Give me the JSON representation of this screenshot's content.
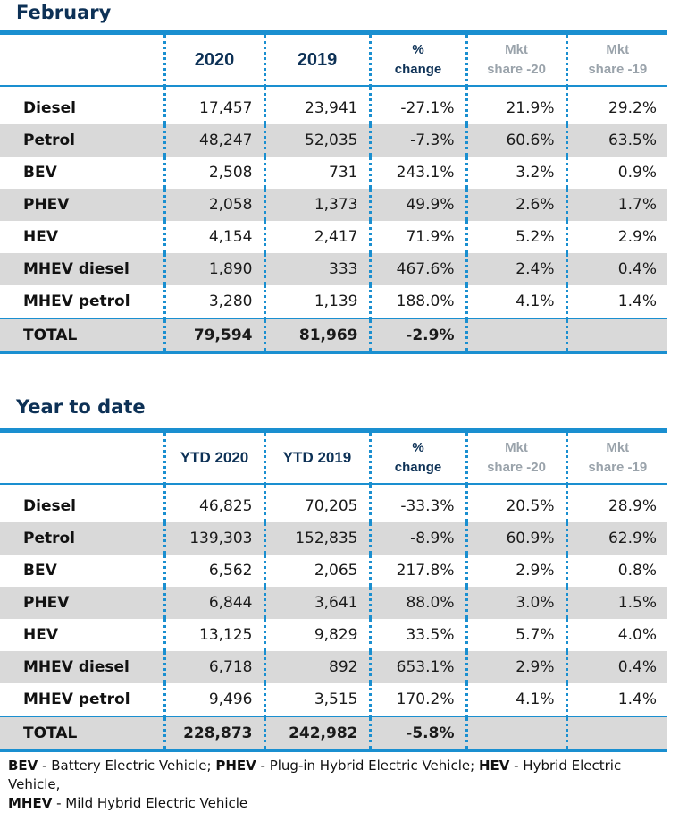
{
  "tables": [
    {
      "title": "February",
      "headers": [
        "",
        "2020",
        "2019",
        "%\nchange",
        "Mkt\nshare -20",
        "Mkt\nshare -19"
      ],
      "rows": [
        {
          "label": "Diesel",
          "values": [
            "17,457",
            "23,941",
            "-27.1%",
            "21.9%",
            "29.2%"
          ]
        },
        {
          "label": "Petrol",
          "values": [
            "48,247",
            "52,035",
            "-7.3%",
            "60.6%",
            "63.5%"
          ]
        },
        {
          "label": "BEV",
          "values": [
            "2,508",
            "731",
            "243.1%",
            "3.2%",
            "0.9%"
          ]
        },
        {
          "label": "PHEV",
          "values": [
            "2,058",
            "1,373",
            "49.9%",
            "2.6%",
            "1.7%"
          ]
        },
        {
          "label": "HEV",
          "values": [
            "4,154",
            "2,417",
            "71.9%",
            "5.2%",
            "2.9%"
          ]
        },
        {
          "label": "MHEV diesel",
          "values": [
            "1,890",
            "333",
            "467.6%",
            "2.4%",
            "0.4%"
          ]
        },
        {
          "label": "MHEV petrol",
          "values": [
            "3,280",
            "1,139",
            "188.0%",
            "4.1%",
            "1.4%"
          ]
        }
      ],
      "total": {
        "label": "TOTAL",
        "values": [
          "79,594",
          "81,969",
          "-2.9%",
          "",
          ""
        ]
      }
    },
    {
      "title": "Year to date",
      "headers": [
        "",
        "YTD 2020",
        "YTD 2019",
        "%\nchange",
        "Mkt\nshare -20",
        "Mkt\nshare -19"
      ],
      "rows": [
        {
          "label": "Diesel",
          "values": [
            "46,825",
            "70,205",
            "-33.3%",
            "20.5%",
            "28.9%"
          ]
        },
        {
          "label": "Petrol",
          "values": [
            "139,303",
            "152,835",
            "-8.9%",
            "60.9%",
            "62.9%"
          ]
        },
        {
          "label": "BEV",
          "values": [
            "6,562",
            "2,065",
            "217.8%",
            "2.9%",
            "0.8%"
          ]
        },
        {
          "label": "PHEV",
          "values": [
            "6,844",
            "3,641",
            "88.0%",
            "3.0%",
            "1.5%"
          ]
        },
        {
          "label": "HEV",
          "values": [
            "13,125",
            "9,829",
            "33.5%",
            "5.7%",
            "4.0%"
          ]
        },
        {
          "label": "MHEV diesel",
          "values": [
            "6,718",
            "892",
            "653.1%",
            "2.9%",
            "0.4%"
          ]
        },
        {
          "label": "MHEV petrol",
          "values": [
            "9,496",
            "3,515",
            "170.2%",
            "4.1%",
            "1.4%"
          ]
        }
      ],
      "total": {
        "label": "TOTAL",
        "values": [
          "228,873",
          "242,982",
          "-5.8%",
          "",
          ""
        ]
      }
    }
  ],
  "legend": {
    "bev_abbr": "BEV",
    "bev_text": " - Battery Electric Vehicle; ",
    "phev_abbr": "PHEV",
    "phev_text": " - Plug-in Hybrid Electric Vehicle; ",
    "hev_abbr": "HEV",
    "hev_text": " - Hybrid Electric Vehicle,",
    "mhev_abbr": "MHEV",
    "mhev_text": " - Mild Hybrid Electric Vehicle"
  },
  "colors": {
    "accent": "#1a8fd0",
    "title": "#0d3156",
    "shade": "#d9d9d9",
    "muted": "#9aa3ab"
  }
}
